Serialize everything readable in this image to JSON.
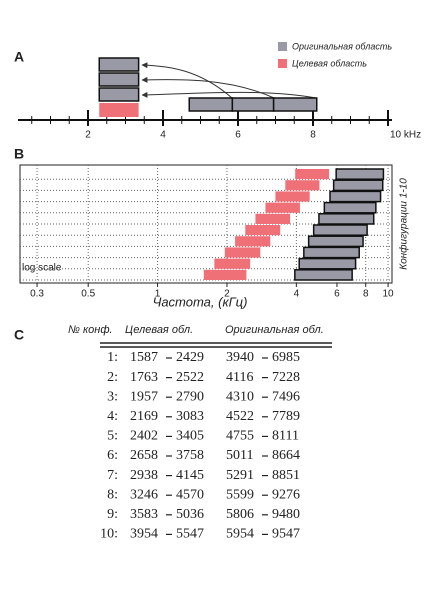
{
  "panel_a": {
    "label": "A",
    "legend": [
      {
        "text": "Оригинальная область",
        "color": "#9a9aa6"
      },
      {
        "text": "Целевая область",
        "color": "#f07078"
      }
    ],
    "xlim": [
      0,
      10.4
    ],
    "xticks": [
      {
        "value": 2,
        "label": "2"
      },
      {
        "value": 4,
        "label": "4"
      },
      {
        "value": 6,
        "label": "6"
      },
      {
        "value": 8,
        "label": "8"
      },
      {
        "value": 10,
        "label": "10 kHz"
      }
    ],
    "target": [
      2.3,
      3.35
    ],
    "original_segments": [
      [
        4.7,
        5.85
      ],
      [
        5.85,
        6.95
      ],
      [
        6.95,
        8.1
      ]
    ]
  },
  "panel_b": {
    "label": "B",
    "log_scale": true,
    "scale_note": "log scale",
    "xlabel": "Частота, (кГц)",
    "ylabel": "Конфигурации 1-10",
    "xlim": [
      253,
      10400
    ],
    "xticks": [
      {
        "value": 300,
        "label": "0.3"
      },
      {
        "value": 500,
        "label": "0.5"
      },
      {
        "value": 1000,
        "label": "1"
      },
      {
        "value": 2000,
        "label": "2"
      },
      {
        "value": 4000,
        "label": "4"
      },
      {
        "value": 6000,
        "label": "6"
      },
      {
        "value": 8000,
        "label": "8"
      },
      {
        "value": 10000,
        "label": "10"
      }
    ],
    "target_color": "#f07078",
    "original_color": "#9a9aa6"
  },
  "panel_c": {
    "label": "C",
    "headers": [
      "№ конф.",
      "Целевая обл.",
      "Оригинальная обл."
    ],
    "rows": [
      {
        "config": "1:",
        "target": [
          1587,
          2429
        ],
        "original": [
          3940,
          6985
        ]
      },
      {
        "config": "2:",
        "target": [
          1763,
          2522
        ],
        "original": [
          4116,
          7228
        ]
      },
      {
        "config": "3:",
        "target": [
          1957,
          2790
        ],
        "original": [
          4310,
          7496
        ]
      },
      {
        "config": "4:",
        "target": [
          2169,
          3083
        ],
        "original": [
          4522,
          7789
        ]
      },
      {
        "config": "5:",
        "target": [
          2402,
          3405
        ],
        "original": [
          4755,
          8111
        ]
      },
      {
        "config": "6:",
        "target": [
          2658,
          3758
        ],
        "original": [
          5011,
          8664
        ]
      },
      {
        "config": "7:",
        "target": [
          2938,
          4145
        ],
        "original": [
          5291,
          8851
        ]
      },
      {
        "config": "8:",
        "target": [
          3246,
          4570
        ],
        "original": [
          5599,
          9276
        ]
      },
      {
        "config": "9:",
        "target": [
          3583,
          5036
        ],
        "original": [
          5806,
          9480
        ]
      },
      {
        "config": "10:",
        "target": [
          3954,
          5547
        ],
        "original": [
          5954,
          9547
        ]
      }
    ]
  }
}
